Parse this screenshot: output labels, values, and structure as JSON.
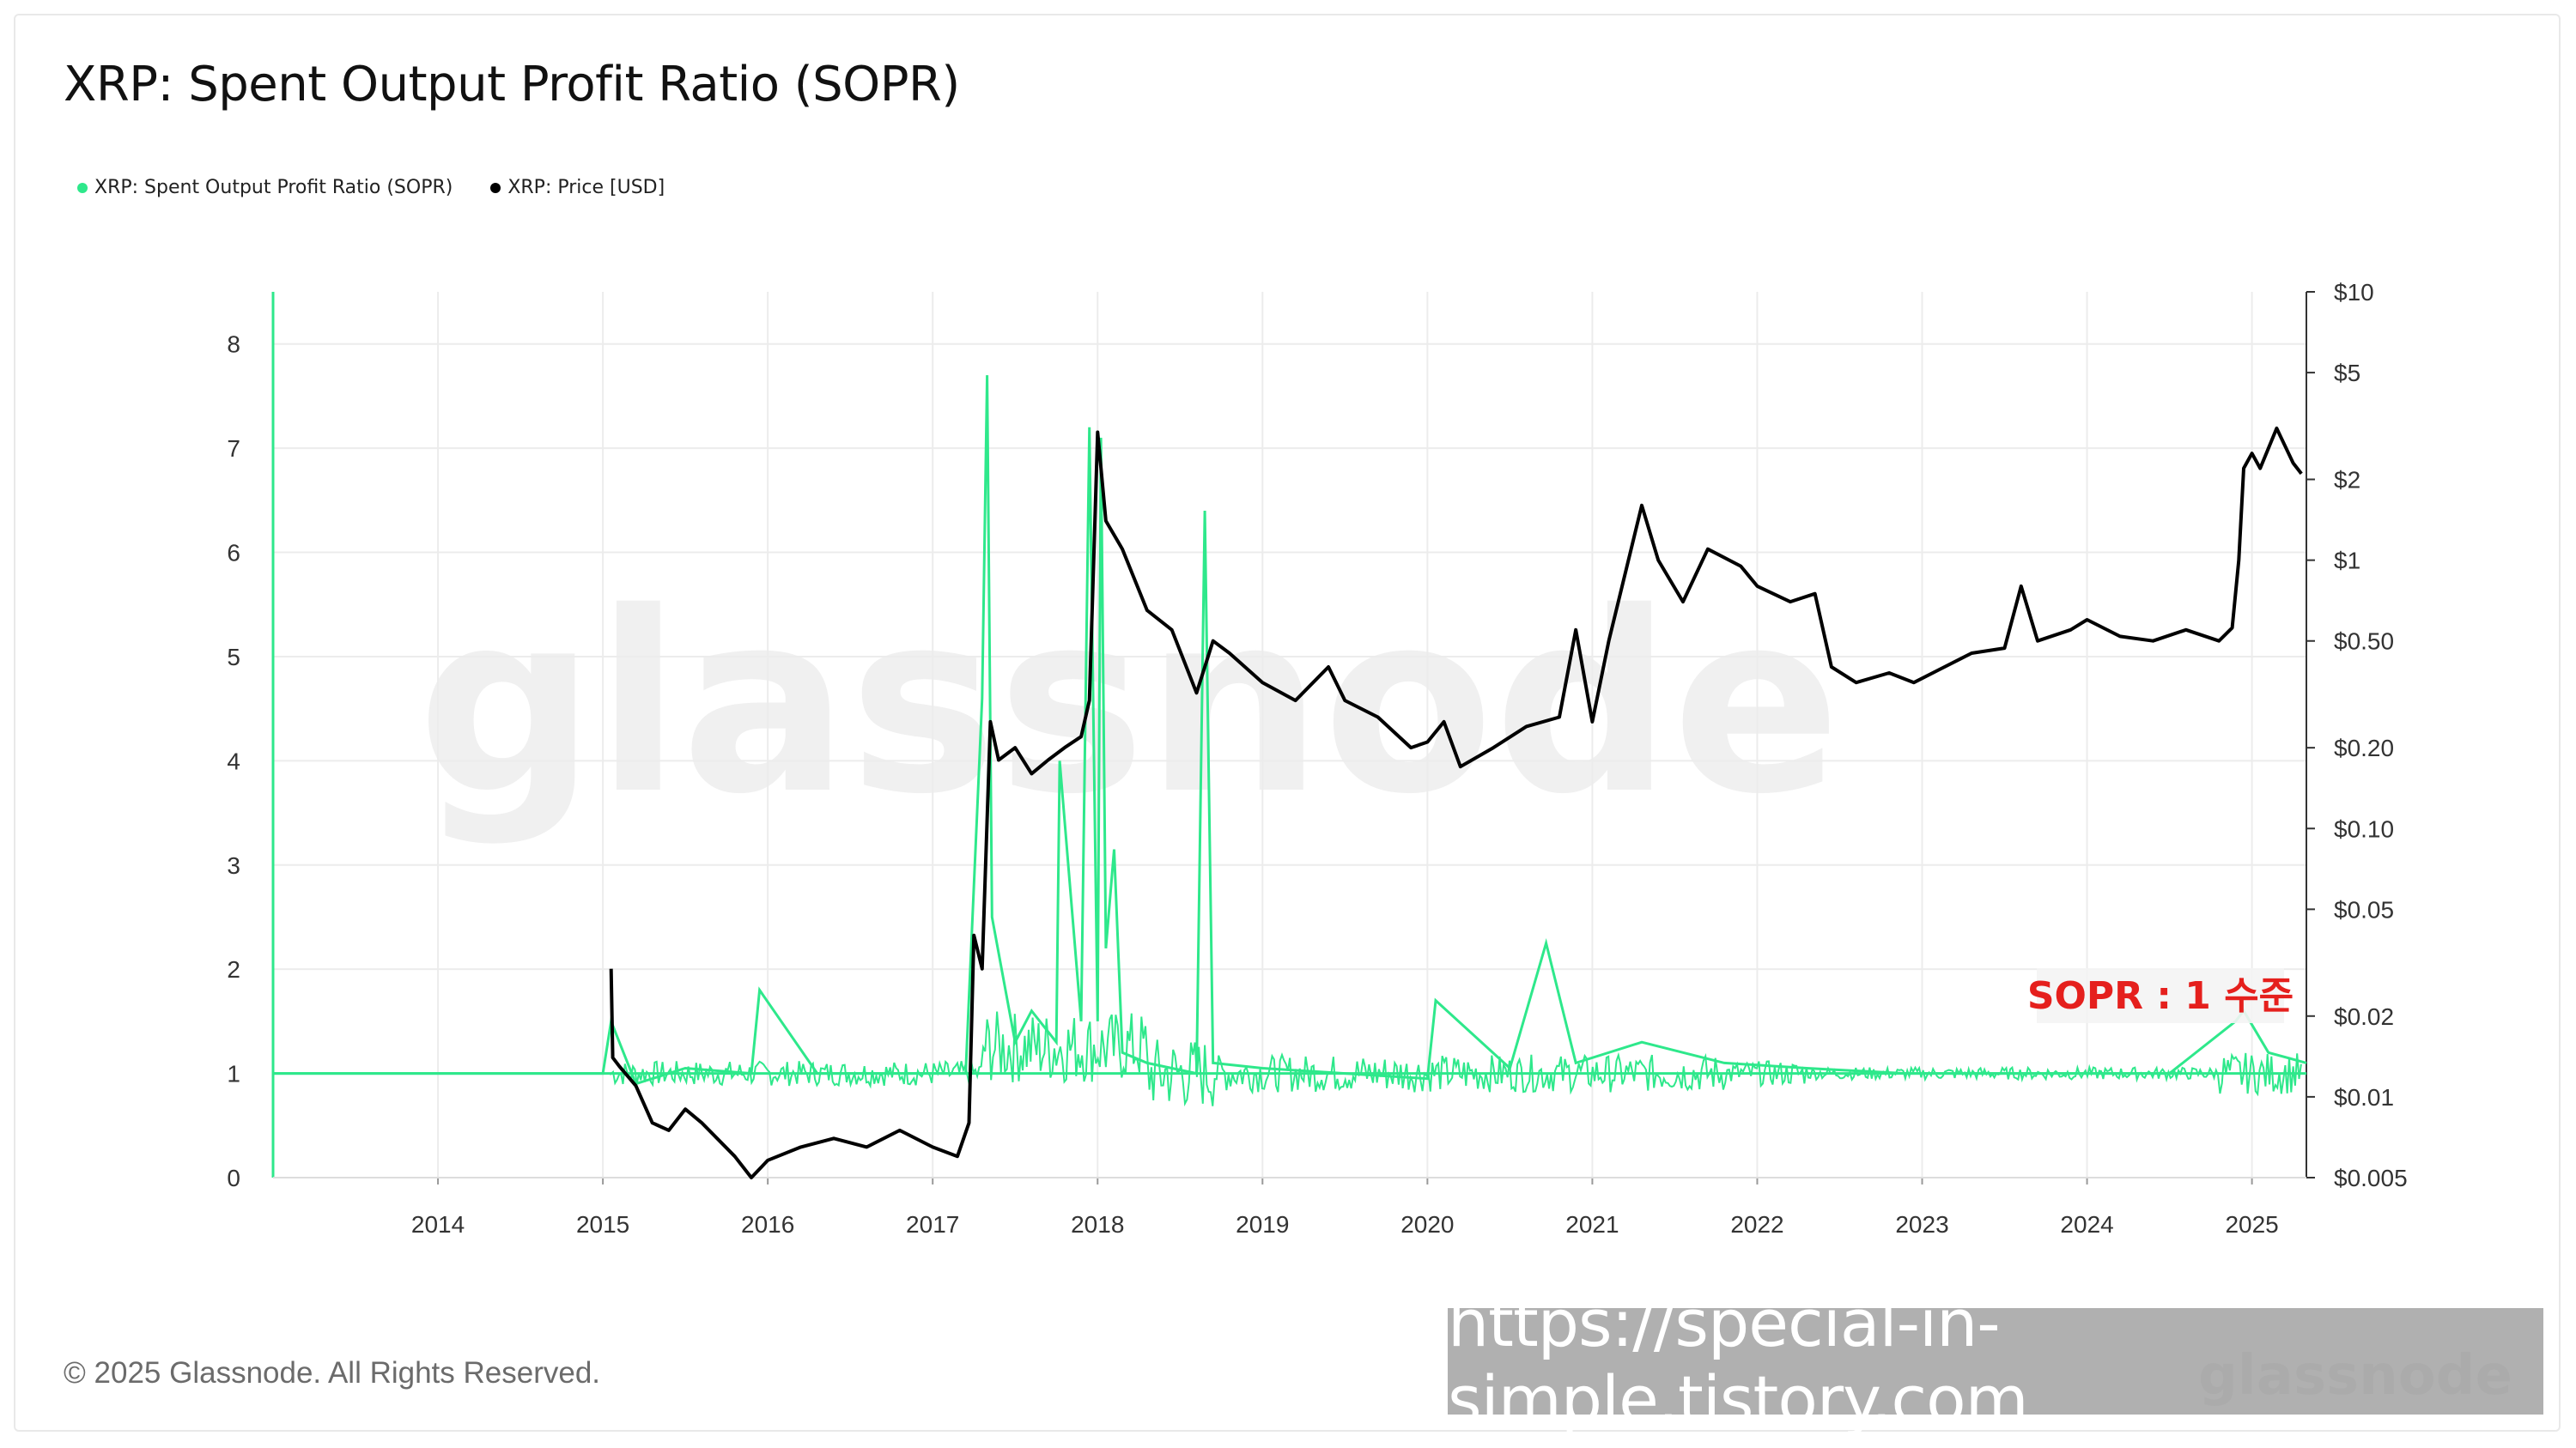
{
  "title": "XRP: Spent Output Profit Ratio (SOPR)",
  "legend": [
    {
      "label": "XRP: Spent Output Profit Ratio (SOPR)",
      "color": "#2ee88b"
    },
    {
      "label": "XRP: Price [USD]",
      "color": "#000000"
    }
  ],
  "copyright": "© 2025 Glassnode. All Rights Reserved.",
  "watermark": "glassnode",
  "url_banner": "https://special-in-simple.tistory.com",
  "annotation": "SOPR : 1 수준",
  "chart_data": {
    "type": "line",
    "x_ticks": [
      "2014",
      "2015",
      "2016",
      "2017",
      "2018",
      "2019",
      "2020",
      "2021",
      "2022",
      "2023",
      "2024",
      "2025"
    ],
    "xlim": [
      2013.0,
      2025.33
    ],
    "y_left": {
      "ticks": [
        "0",
        "1",
        "2",
        "3",
        "4",
        "5",
        "6",
        "7",
        "8"
      ],
      "ylim": [
        0,
        8.5
      ],
      "scale": "linear"
    },
    "y_right": {
      "ticks": [
        "$0.005",
        "$0.01",
        "$0.02",
        "$0.05",
        "$0.10",
        "$0.20",
        "$0.50",
        "$1",
        "$2",
        "$5",
        "$10"
      ],
      "tick_values": [
        0.005,
        0.01,
        0.02,
        0.05,
        0.1,
        0.2,
        0.5,
        1,
        2,
        5,
        10
      ],
      "ylim": [
        0.005,
        10
      ],
      "scale": "log"
    },
    "grid": true,
    "series": [
      {
        "name": "XRP: Spent Output Profit Ratio (SOPR)",
        "axis": "left",
        "color": "#2ee88b",
        "baseline": 1.0,
        "x": [
          2013.0,
          2015.0,
          2015.05,
          2015.2,
          2015.5,
          2015.9,
          2015.95,
          2016.3,
          2016.8,
          2017.2,
          2017.3,
          2017.33,
          2017.36,
          2017.5,
          2017.6,
          2017.75,
          2017.77,
          2017.9,
          2017.95,
          2018.0,
          2018.02,
          2018.05,
          2018.1,
          2018.15,
          2018.3,
          2018.6,
          2018.65,
          2018.7,
          2019.0,
          2019.5,
          2020.0,
          2020.05,
          2020.5,
          2020.72,
          2020.9,
          2021.3,
          2021.8,
          2022.3,
          2022.9,
          2023.5,
          2024.0,
          2024.5,
          2024.9,
          2024.95,
          2025.1,
          2025.33
        ],
        "y": [
          1.0,
          1.0,
          1.5,
          0.9,
          1.05,
          1.0,
          1.8,
          1.0,
          1.0,
          1.0,
          4.6,
          7.7,
          2.5,
          1.3,
          1.6,
          1.3,
          4.0,
          1.5,
          7.2,
          1.5,
          7.1,
          2.2,
          3.15,
          1.2,
          1.1,
          1.0,
          6.4,
          1.1,
          1.05,
          1.0,
          0.95,
          1.7,
          1.05,
          2.25,
          1.1,
          1.3,
          1.1,
          1.05,
          1.0,
          1.0,
          1.0,
          1.0,
          1.5,
          1.6,
          1.2,
          1.1
        ]
      },
      {
        "name": "XRP: Price [USD]",
        "axis": "right",
        "color": "#000000",
        "x": [
          2015.05,
          2015.06,
          2015.1,
          2015.2,
          2015.3,
          2015.4,
          2015.5,
          2015.6,
          2015.8,
          2015.9,
          2016.0,
          2016.2,
          2016.4,
          2016.6,
          2016.8,
          2017.0,
          2017.15,
          2017.22,
          2017.25,
          2017.3,
          2017.35,
          2017.4,
          2017.5,
          2017.6,
          2017.7,
          2017.8,
          2017.9,
          2017.95,
          2018.0,
          2018.05,
          2018.15,
          2018.3,
          2018.45,
          2018.6,
          2018.7,
          2018.8,
          2019.0,
          2019.2,
          2019.4,
          2019.5,
          2019.7,
          2019.9,
          2020.0,
          2020.1,
          2020.2,
          2020.4,
          2020.6,
          2020.8,
          2020.9,
          2021.0,
          2021.1,
          2021.3,
          2021.4,
          2021.55,
          2021.7,
          2021.9,
          2022.0,
          2022.2,
          2022.35,
          2022.45,
          2022.6,
          2022.8,
          2022.95,
          2023.1,
          2023.3,
          2023.5,
          2023.6,
          2023.7,
          2023.9,
          2024.0,
          2024.2,
          2024.4,
          2024.6,
          2024.8,
          2024.88,
          2024.92,
          2024.95,
          2025.0,
          2025.05,
          2025.15,
          2025.25,
          2025.3
        ],
        "y": [
          0.03,
          0.014,
          0.013,
          0.011,
          0.008,
          0.0075,
          0.009,
          0.008,
          0.006,
          0.005,
          0.0058,
          0.0065,
          0.007,
          0.0065,
          0.0075,
          0.0065,
          0.006,
          0.008,
          0.04,
          0.03,
          0.25,
          0.18,
          0.2,
          0.16,
          0.18,
          0.2,
          0.22,
          0.3,
          3.0,
          1.4,
          1.1,
          0.65,
          0.55,
          0.32,
          0.5,
          0.45,
          0.35,
          0.3,
          0.4,
          0.3,
          0.26,
          0.2,
          0.21,
          0.25,
          0.17,
          0.2,
          0.24,
          0.26,
          0.55,
          0.25,
          0.5,
          1.6,
          1.0,
          0.7,
          1.1,
          0.95,
          0.8,
          0.7,
          0.75,
          0.4,
          0.35,
          0.38,
          0.35,
          0.39,
          0.45,
          0.47,
          0.8,
          0.5,
          0.55,
          0.6,
          0.52,
          0.5,
          0.55,
          0.5,
          0.56,
          1.0,
          2.2,
          2.5,
          2.2,
          3.1,
          2.3,
          2.1
        ]
      }
    ]
  }
}
